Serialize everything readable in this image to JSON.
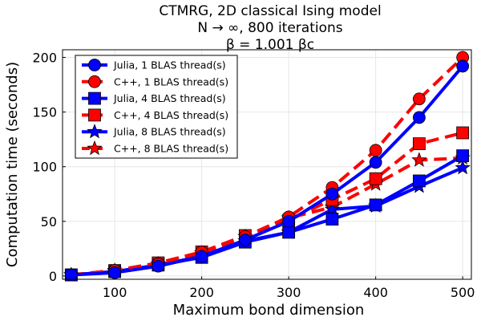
{
  "chart_data": {
    "type": "line",
    "title": [
      "CTMRG, 2D classical Ising model",
      "N → ∞, 800 iterations",
      "β = 1.001 βc"
    ],
    "xlabel": "Maximum bond dimension",
    "ylabel": "Computation time (seconds)",
    "xlim": [
      40,
      510
    ],
    "ylim": [
      -3,
      207
    ],
    "xticks": [
      100,
      200,
      300,
      400,
      500
    ],
    "yticks": [
      0,
      50,
      100,
      150,
      200
    ],
    "grid": true,
    "legend_position": "top-left",
    "x": [
      50,
      100,
      150,
      200,
      250,
      300,
      350,
      400,
      450,
      500
    ],
    "series": [
      {
        "name": "Julia, 1 BLAS thread(s)",
        "color": "#0000ff",
        "line": "solid",
        "marker": "circle",
        "values": [
          1,
          3,
          9,
          18,
          33,
          50,
          75,
          104,
          145,
          192
        ]
      },
      {
        "name": "C++, 1 BLAS thread(s)",
        "color": "#ff0000",
        "line": "dashed",
        "marker": "circle",
        "values": [
          1,
          5,
          11,
          22,
          36,
          54,
          81,
          115,
          162,
          200
        ]
      },
      {
        "name": "Julia, 4 BLAS thread(s)",
        "color": "#0000ff",
        "line": "solid",
        "marker": "square",
        "values": [
          1,
          4,
          10,
          17,
          31,
          40,
          52,
          65,
          87,
          110
        ]
      },
      {
        "name": "C++, 4 BLAS thread(s)",
        "color": "#ff0000",
        "line": "dashed",
        "marker": "square",
        "values": [
          1,
          5,
          12,
          22,
          37,
          51,
          70,
          89,
          121,
          131
        ]
      },
      {
        "name": "Julia, 8 BLAS thread(s)",
        "color": "#0000ff",
        "line": "solid",
        "marker": "star",
        "values": [
          1,
          4,
          10,
          18,
          32,
          40,
          61,
          64,
          82,
          99
        ]
      },
      {
        "name": "C++, 8 BLAS thread(s)",
        "color": "#ff0000",
        "line": "dashed",
        "marker": "star",
        "values": [
          1,
          5,
          11,
          21,
          36,
          53,
          63,
          84,
          106,
          108
        ]
      }
    ]
  }
}
